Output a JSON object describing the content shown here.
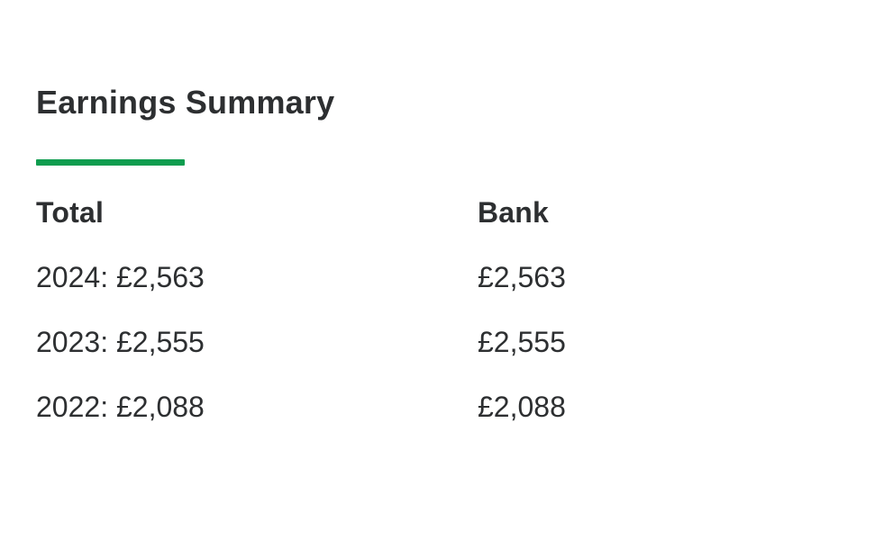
{
  "page": {
    "title": "Earnings Summary",
    "accent_color": "#0f9d4f",
    "text_color": "#2d2f31",
    "background_color": "#ffffff"
  },
  "earnings_table": {
    "columns": [
      {
        "label": "Total"
      },
      {
        "label": "Bank"
      }
    ],
    "rows": [
      {
        "total": "2024: £2,563",
        "bank": "£2,563"
      },
      {
        "total": "2023: £2,555",
        "bank": "£2,555"
      },
      {
        "total": "2022: £2,088",
        "bank": "£2,088"
      }
    ]
  }
}
